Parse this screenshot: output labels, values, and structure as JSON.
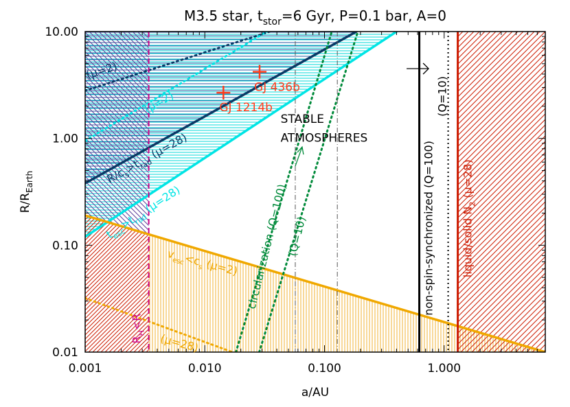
{
  "chart_data": {
    "type": "line",
    "title": "M3.5 star, t_stor=6 Gyr, P=0.1 bar, A=0",
    "title_parts": {
      "pre": "M3.5 star, t",
      "sub": "stor",
      "post": "=6 Gyr, P=0.1 bar, A=0"
    },
    "xlabel": "a/AU",
    "ylabel": {
      "pre": "R/R",
      "sub": "Earth"
    },
    "xscale": "log",
    "yscale": "log",
    "xlim": [
      0.001,
      7.0
    ],
    "ylim": [
      0.01,
      10.0
    ],
    "x_ticks": [
      {
        "v": 0.001,
        "t": "0.001"
      },
      {
        "v": 0.01,
        "t": "0.010"
      },
      {
        "v": 0.1,
        "t": "0.100"
      },
      {
        "v": 1.0,
        "t": "1.000"
      }
    ],
    "y_ticks": [
      {
        "v": 0.01,
        "t": "0.01"
      },
      {
        "v": 0.1,
        "t": "0.10"
      },
      {
        "v": 1.0,
        "t": "1.00"
      },
      {
        "v": 10.0,
        "t": "10.00"
      }
    ],
    "colors": {
      "navy": "#0a3a66",
      "cyan": "#00e5e5",
      "orange": "#f0a800",
      "magenta": "#cc0088",
      "green": "#008a3a",
      "red": "#cc1a00",
      "black": "#000000",
      "purple": "#5a3c9a"
    },
    "series": [
      {
        "label": {
          "pre": "R/c",
          "sub1": "s",
          "mid": ">t",
          "sub2": "rad",
          "post": " (μ=28)"
        },
        "color": "#0a3a66",
        "style": "solid",
        "x": [
          0.001,
          0.185
        ],
        "y": [
          0.38,
          10.0
        ]
      },
      {
        "label": {
          "text": "(μ=2)"
        },
        "color": "#0a3a66",
        "style": "dotted",
        "x": [
          0.001,
          0.035
        ],
        "y": [
          2.8,
          10.0
        ]
      },
      {
        "label": {
          "pre": "t",
          "sub1": "esc",
          "mid": ">t",
          "sub2": "rad",
          "post": " (μ=28)"
        },
        "color": "#00e5e5",
        "style": "solid",
        "x": [
          0.001,
          0.4
        ],
        "y": [
          0.12,
          10.0
        ]
      },
      {
        "label": {
          "text": "(μ=2)"
        },
        "color": "#00e5e5",
        "style": "dotted",
        "x": [
          0.001,
          0.033
        ],
        "y": [
          0.95,
          10.0
        ]
      },
      {
        "label": {
          "pre": "v",
          "sub1": "esc",
          "mid": "<c",
          "sub2": "s",
          "post": " (μ=2)"
        },
        "color": "#f0a800",
        "style": "solid",
        "x": [
          0.001,
          7.0
        ],
        "y": [
          0.19,
          0.01
        ]
      },
      {
        "label": {
          "text": "(μ=28)"
        },
        "color": "#f0a800",
        "style": "dotted",
        "x": [
          0.001,
          0.017
        ],
        "y": [
          0.032,
          0.01
        ]
      },
      {
        "label": {
          "text": "circularization (Q=100)"
        },
        "color": "#008a3a",
        "style": "dotted",
        "x": [
          0.0182,
          0.115
        ],
        "y": [
          0.01,
          10.0
        ]
      },
      {
        "label": {
          "text": "(Q=10)"
        },
        "color": "#008a3a",
        "style": "dotted",
        "x": [
          0.0285,
          0.19
        ],
        "y": [
          0.01,
          10.0
        ]
      }
    ],
    "vertical_lines": [
      {
        "x": 0.0034,
        "color": "#cc0088",
        "style": "dashed",
        "label": {
          "pre": "R",
          "sub": "H",
          "post": "<R"
        }
      },
      {
        "x": 0.057,
        "color": "#555555",
        "style": "dashdot"
      },
      {
        "x": 0.128,
        "color": "#555555",
        "style": "dashdot"
      },
      {
        "x": 0.62,
        "color": "#000000",
        "style": "solid",
        "label": {
          "text": "non-spin-synchronized (Q=100)"
        }
      },
      {
        "x": 1.08,
        "color": "#000000",
        "style": "dotted",
        "label": {
          "text": "(Q=10)"
        }
      },
      {
        "x": 1.3,
        "color": "#cc1a00",
        "style": "solid",
        "label": {
          "pre": "liquid/solid N",
          "sub": "2",
          "post": " (μ=28)"
        }
      }
    ],
    "points": [
      {
        "name": "GJ 436b",
        "x": 0.0287,
        "y": 4.2,
        "color": "#ff3a1a"
      },
      {
        "name": "GJ 1214b",
        "x": 0.0143,
        "y": 2.68,
        "color": "#ff3a1a"
      }
    ],
    "annotations": [
      {
        "text": "STABLE",
        "x": 0.043,
        "y": 1.4,
        "color": "#000000"
      },
      {
        "text": "ATMOSPHERES",
        "x": 0.043,
        "y": 0.93,
        "color": "#000000"
      }
    ]
  }
}
